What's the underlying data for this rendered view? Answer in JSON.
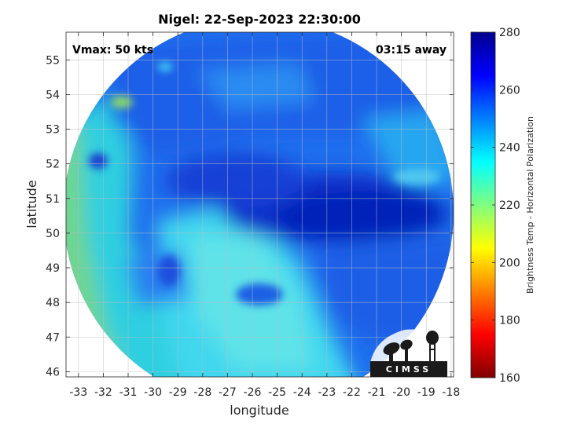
{
  "chart_data": {
    "type": "heatmap",
    "title": "Nigel: 22-Sep-2023 22:30:00",
    "xlabel": "longitude",
    "ylabel": "latitude",
    "xlim": [
      -33.5,
      -17.9
    ],
    "ylim": [
      45.85,
      55.8
    ],
    "x_ticks": [
      -33,
      -32,
      -31,
      -30,
      -29,
      -28,
      -27,
      -26,
      -25,
      -24,
      -23,
      -22,
      -21,
      -20,
      -19,
      -18
    ],
    "y_ticks": [
      46,
      47,
      48,
      49,
      50,
      51,
      52,
      53,
      54,
      55
    ],
    "x_tick_labels": [
      "-33",
      "-32",
      "-31",
      "-30",
      "-29",
      "-28",
      "-27",
      "-26",
      "-25",
      "-24",
      "-23",
      "-22",
      "-21",
      "-20",
      "-19",
      "-18"
    ],
    "y_tick_labels": [
      "46",
      "47",
      "48",
      "49",
      "50",
      "51",
      "52",
      "53",
      "54",
      "55"
    ],
    "grid": true,
    "annotations": {
      "vmax": "Vmax: 50 kts",
      "away": "03:15 away"
    },
    "colorbar": {
      "label": "Brightness Temp - Horizontal Polarization",
      "range": [
        160,
        280
      ],
      "ticks": [
        160,
        180,
        200,
        220,
        240,
        260,
        280
      ],
      "tick_labels": [
        "160",
        "180",
        "200",
        "220",
        "240",
        "260",
        "280"
      ],
      "colormap": "jet",
      "placement": "right"
    },
    "swath": {
      "shape": "circle",
      "center": [
        -25.75,
        50.6
      ],
      "cold_core_center": [
        -22.5,
        50.5
      ],
      "cold_core_value": 268,
      "warm_edge_value": 222,
      "background_value": 248
    },
    "logo_text": "CIMSS"
  }
}
